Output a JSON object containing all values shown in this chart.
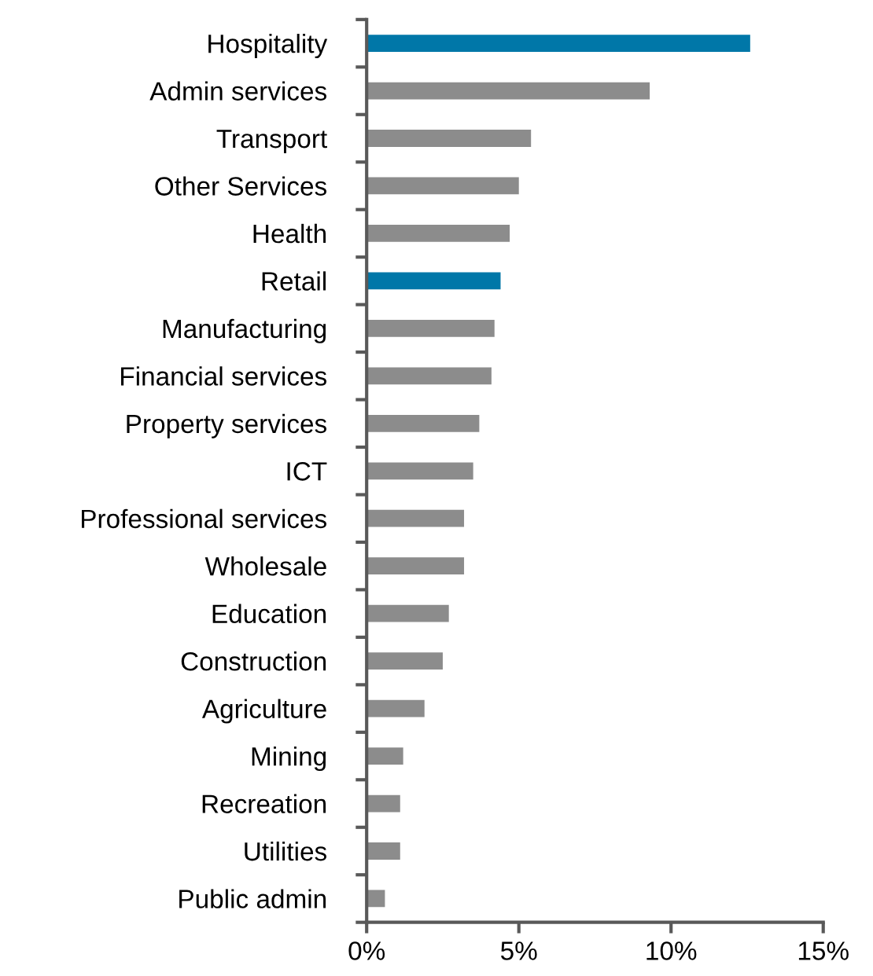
{
  "chart_data": {
    "type": "bar",
    "orientation": "horizontal",
    "categories": [
      "Hospitality",
      "Admin services",
      "Transport",
      "Other Services",
      "Health",
      "Retail",
      "Manufacturing",
      "Financial services",
      "Property services",
      "ICT",
      "Professional services",
      "Wholesale",
      "Education",
      "Construction",
      "Agriculture",
      "Mining",
      "Recreation",
      "Utilities",
      "Public admin"
    ],
    "values": [
      12.6,
      9.3,
      5.4,
      5.0,
      4.7,
      4.4,
      4.2,
      4.1,
      3.7,
      3.5,
      3.2,
      3.2,
      2.7,
      2.5,
      1.9,
      1.2,
      1.1,
      1.1,
      0.6
    ],
    "colors": [
      "#0077a8",
      "#8c8c8c",
      "#8c8c8c",
      "#8c8c8c",
      "#8c8c8c",
      "#0077a8",
      "#8c8c8c",
      "#8c8c8c",
      "#8c8c8c",
      "#8c8c8c",
      "#8c8c8c",
      "#8c8c8c",
      "#8c8c8c",
      "#8c8c8c",
      "#8c8c8c",
      "#8c8c8c",
      "#8c8c8c",
      "#8c8c8c",
      "#8c8c8c"
    ],
    "xlim": [
      0,
      15
    ],
    "xticks": [
      {
        "value": 0,
        "label": "0%"
      },
      {
        "value": 5,
        "label": "5%"
      },
      {
        "value": 10,
        "label": "10%"
      },
      {
        "value": 15,
        "label": "15%"
      }
    ],
    "grid": false,
    "legend": false
  }
}
